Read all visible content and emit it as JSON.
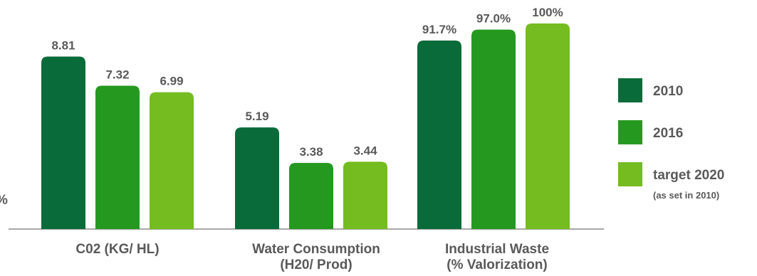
{
  "edge_fragment": "%",
  "chart_data": {
    "type": "bar",
    "title": "",
    "xlabel": "",
    "ylabel": "",
    "grid": false,
    "legend_position": "right",
    "categories": [
      [
        "C02 (KG/ HL)"
      ],
      [
        "Water Consumption",
        "(H20/ Prod)"
      ],
      [
        "Industrial Waste",
        "(% Valorization)"
      ]
    ],
    "series": [
      {
        "name": "2010",
        "color": "#0a6b3a",
        "values": [
          8.81,
          5.19,
          91.7
        ],
        "labels": [
          "8.81",
          "5.19",
          "91.7%"
        ]
      },
      {
        "name": "2016",
        "color": "#25991f",
        "values": [
          7.32,
          3.38,
          97.0
        ],
        "labels": [
          "7.32",
          "3.38",
          "97.0%"
        ]
      },
      {
        "name": "target 2020",
        "note": "(as set in 2010)",
        "color": "#74bc1f",
        "values": [
          6.99,
          3.44,
          100
        ],
        "labels": [
          "6.99",
          "3.44",
          "100%"
        ]
      }
    ],
    "group_scale_max": [
      10.5,
      10.5,
      100
    ]
  }
}
